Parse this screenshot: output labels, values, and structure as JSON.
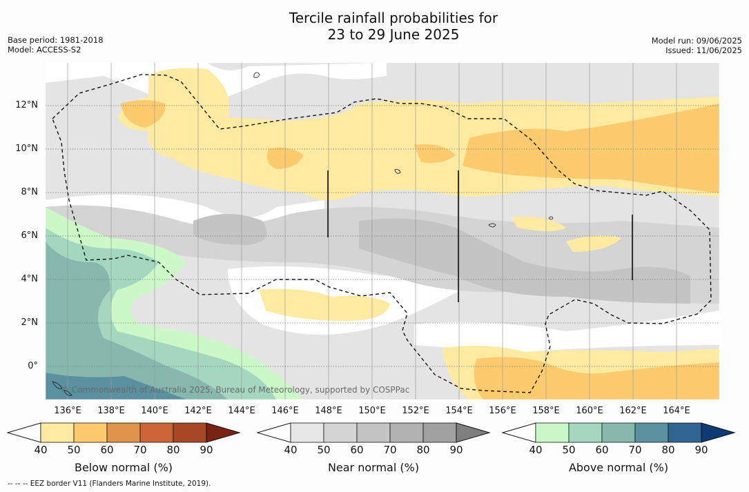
{
  "title": {
    "line1": "Tercile rainfall probabilities for",
    "line2": "23 to 29 June 2025"
  },
  "meta_left": {
    "base_period": "Base period: 1981-2018",
    "model": "Model: ACCESS-S2"
  },
  "meta_right": {
    "model_run": "Model run: 09/06/2025",
    "issued": "Issued: 11/06/2025"
  },
  "credit": "© Commonwealth of Australia 2025, Bureau of Meteorology, supported by COSPPac",
  "x_ticks": [
    "136°E",
    "138°E",
    "140°E",
    "142°E",
    "144°E",
    "146°E",
    "148°E",
    "150°E",
    "152°E",
    "154°E",
    "156°E",
    "158°E",
    "160°E",
    "162°E",
    "164°E"
  ],
  "y_ticks": [
    "12°N",
    "10°N",
    "8°N",
    "6°N",
    "4°N",
    "2°N",
    "0°"
  ],
  "map_extent": {
    "lon": [
      135,
      166
    ],
    "lat": [
      -1.5,
      14
    ]
  },
  "legend": [
    {
      "label": "Below normal (%)",
      "ticks": [
        "40",
        "50",
        "60",
        "70",
        "80",
        "90"
      ],
      "colors": [
        "#ffffff",
        "#feeaa0",
        "#fdcb6e",
        "#e0954a",
        "#cc6535",
        "#a84826",
        "#7a2313"
      ]
    },
    {
      "label": "Near normal (%)",
      "ticks": [
        "40",
        "50",
        "60",
        "70",
        "80",
        "90"
      ],
      "colors": [
        "#ffffff",
        "#e6e6e6",
        "#d4d4d4",
        "#c4c4c4",
        "#b1b1b1",
        "#a0a0a0",
        "#7f7f7f"
      ]
    },
    {
      "label": "Above normal (%)",
      "ticks": [
        "40",
        "50",
        "60",
        "70",
        "80",
        "90"
      ],
      "colors": [
        "#ffffff",
        "#ccf8c8",
        "#a3d7bf",
        "#86b8ae",
        "#5a91a0",
        "#2f6493",
        "#0d3a75"
      ]
    }
  ],
  "footnote": "--  --  -- EEZ border V11 (Flanders Marine Institute, 2019)."
}
